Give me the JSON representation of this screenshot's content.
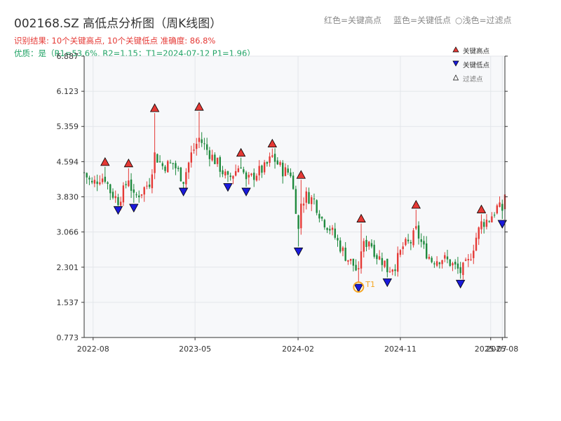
{
  "header": {
    "title": "002168.SZ 高低点分析图（周K线图）",
    "subtitle_result": "识别结果: 10个关键高点, 10个关键低点   准确度: 86.8%",
    "subtitle_quality": "优质：是（R1=53.6%, R2=1.15；T1=2024-07-12 P1=1.96）",
    "legend_text": [
      "红色=关键高点",
      "蓝色=关键低点",
      "○浅色=过滤点"
    ]
  },
  "legend": {
    "items": [
      {
        "label": "关键高点",
        "color": "#e53935"
      },
      {
        "label": "关键低点",
        "color": "#1a1adb"
      },
      {
        "label": "过滤点",
        "color": "#ffffff"
      }
    ]
  },
  "colors": {
    "up": "#e53935",
    "down": "#1f8a3e",
    "high_marker": "#e53935",
    "low_marker": "#1a1adb",
    "t1_ring": "#f5a623",
    "plot_bg": "#f7f8fa"
  },
  "chart_data": {
    "type": "candlestick",
    "title": "002168.SZ 高低点分析图（周K线图）",
    "xlabel": "",
    "ylabel": "",
    "x_start": "2022-07-08",
    "x_end": "2025-08-08",
    "ylim": [
      0.773,
      6.887
    ],
    "y_ticks": [
      0.773,
      1.537,
      2.301,
      3.066,
      3.83,
      4.594,
      5.359,
      6.123,
      6.887
    ],
    "x_tick_labels": [
      "2022-08",
      "2023-05",
      "2024-02",
      "2024-11",
      "2025-07",
      "2025-08"
    ],
    "x_tick_dates": [
      "2022-08-01",
      "2023-05-01",
      "2024-02-01",
      "2024-11-01",
      "2025-07-01",
      "2025-08-01"
    ],
    "grid": true,
    "legend_position": "top-right",
    "t1": {
      "label": "T1",
      "date": "2024-07-12",
      "price": 1.96
    },
    "key_highs": [
      {
        "date": "2022-09-02",
        "price": 4.48
      },
      {
        "date": "2022-11-04",
        "price": 4.45
      },
      {
        "date": "2023-01-13",
        "price": 5.65
      },
      {
        "date": "2023-05-12",
        "price": 5.68
      },
      {
        "date": "2023-09-01",
        "price": 4.68
      },
      {
        "date": "2023-11-24",
        "price": 4.88
      },
      {
        "date": "2024-02-09",
        "price": 4.2
      },
      {
        "date": "2024-07-19",
        "price": 3.25
      },
      {
        "date": "2024-12-13",
        "price": 3.55
      },
      {
        "date": "2025-06-06",
        "price": 3.45
      }
    ],
    "key_lows": [
      {
        "date": "2022-10-07",
        "price": 3.65
      },
      {
        "date": "2022-11-18",
        "price": 3.7
      },
      {
        "date": "2023-03-31",
        "price": 4.05
      },
      {
        "date": "2023-07-28",
        "price": 4.15
      },
      {
        "date": "2023-09-15",
        "price": 4.05
      },
      {
        "date": "2024-02-02",
        "price": 2.75
      },
      {
        "date": "2024-07-12",
        "price": 1.96
      },
      {
        "date": "2024-09-27",
        "price": 2.08
      },
      {
        "date": "2025-04-11",
        "price": 2.05
      },
      {
        "date": "2025-08-01",
        "price": 3.35
      }
    ],
    "anchors": [
      [
        "2022-07-08",
        4.35
      ],
      [
        "2022-07-29",
        4.1
      ],
      [
        "2022-08-19",
        4.25
      ],
      [
        "2022-09-02",
        4.25
      ],
      [
        "2022-09-16",
        3.95
      ],
      [
        "2022-10-07",
        3.75
      ],
      [
        "2022-10-21",
        3.95
      ],
      [
        "2022-11-04",
        4.25
      ],
      [
        "2022-11-18",
        3.8
      ],
      [
        "2022-12-09",
        3.95
      ],
      [
        "2022-12-30",
        4.15
      ],
      [
        "2023-01-13",
        4.75
      ],
      [
        "2023-02-03",
        4.5
      ],
      [
        "2023-03-03",
        4.55
      ],
      [
        "2023-03-31",
        4.2
      ],
      [
        "2023-04-21",
        4.75
      ],
      [
        "2023-05-12",
        5.1
      ],
      [
        "2023-06-02",
        4.85
      ],
      [
        "2023-06-30",
        4.55
      ],
      [
        "2023-07-28",
        4.2
      ],
      [
        "2023-08-18",
        4.4
      ],
      [
        "2023-09-01",
        4.55
      ],
      [
        "2023-09-15",
        4.15
      ],
      [
        "2023-10-13",
        4.35
      ],
      [
        "2023-11-03",
        4.45
      ],
      [
        "2023-11-24",
        4.7
      ],
      [
        "2023-12-22",
        4.4
      ],
      [
        "2024-01-12",
        4.35
      ],
      [
        "2024-01-26",
        3.6
      ],
      [
        "2024-02-02",
        3.1
      ],
      [
        "2024-02-09",
        3.7
      ],
      [
        "2024-02-23",
        3.85
      ],
      [
        "2024-03-15",
        3.75
      ],
      [
        "2024-04-05",
        3.35
      ],
      [
        "2024-04-26",
        3.15
      ],
      [
        "2024-05-17",
        2.85
      ],
      [
        "2024-06-07",
        2.55
      ],
      [
        "2024-06-28",
        2.35
      ],
      [
        "2024-07-12",
        2.15
      ],
      [
        "2024-07-19",
        2.7
      ],
      [
        "2024-08-09",
        2.9
      ],
      [
        "2024-08-30",
        2.55
      ],
      [
        "2024-09-20",
        2.4
      ],
      [
        "2024-09-27",
        2.25
      ],
      [
        "2024-10-18",
        2.35
      ],
      [
        "2024-11-08",
        2.75
      ],
      [
        "2024-11-29",
        2.85
      ],
      [
        "2024-12-13",
        3.1
      ],
      [
        "2025-01-03",
        2.7
      ],
      [
        "2025-01-24",
        2.45
      ],
      [
        "2025-02-21",
        2.5
      ],
      [
        "2025-03-14",
        2.4
      ],
      [
        "2025-04-11",
        2.2
      ],
      [
        "2025-05-02",
        2.4
      ],
      [
        "2025-05-23",
        2.95
      ],
      [
        "2025-06-06",
        3.25
      ],
      [
        "2025-06-27",
        3.35
      ],
      [
        "2025-07-18",
        3.6
      ],
      [
        "2025-08-01",
        3.55
      ],
      [
        "2025-08-08",
        3.9
      ]
    ]
  }
}
